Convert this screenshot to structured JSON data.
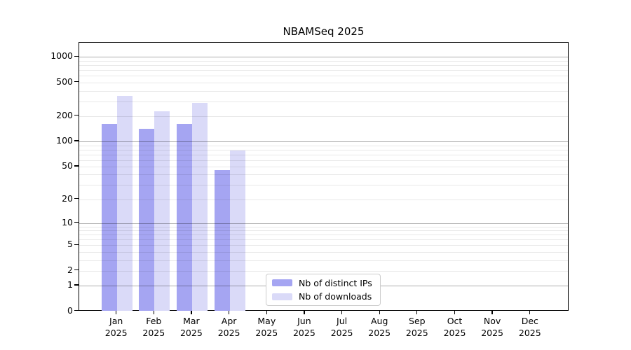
{
  "chart_data": {
    "type": "bar",
    "title": "NBAMSeq 2025",
    "scale": "log1p",
    "categories": [
      {
        "month": "Jan",
        "year": "2025"
      },
      {
        "month": "Feb",
        "year": "2025"
      },
      {
        "month": "Mar",
        "year": "2025"
      },
      {
        "month": "Apr",
        "year": "2025"
      },
      {
        "month": "May",
        "year": "2025"
      },
      {
        "month": "Jun",
        "year": "2025"
      },
      {
        "month": "Jul",
        "year": "2025"
      },
      {
        "month": "Aug",
        "year": "2025"
      },
      {
        "month": "Sep",
        "year": "2025"
      },
      {
        "month": "Oct",
        "year": "2025"
      },
      {
        "month": "Nov",
        "year": "2025"
      },
      {
        "month": "Dec",
        "year": "2025"
      }
    ],
    "series": [
      {
        "name": "Nb of distinct IPs",
        "color": "#a5a5f2",
        "values": [
          162,
          140,
          162,
          45,
          0,
          0,
          0,
          0,
          0,
          0,
          0,
          0
        ]
      },
      {
        "name": "Nb of downloads",
        "color": "#dadaf8",
        "values": [
          345,
          226,
          285,
          78,
          0,
          0,
          0,
          0,
          0,
          0,
          0,
          0
        ]
      }
    ],
    "yticks": [
      1000,
      500,
      200,
      100,
      50,
      20,
      10,
      5,
      2,
      1,
      0
    ],
    "ylim": [
      0,
      1475
    ],
    "gridlines": {
      "major": [
        1,
        10,
        100,
        1000
      ],
      "minor": [
        2,
        3,
        4,
        5,
        6,
        7,
        8,
        9,
        20,
        30,
        40,
        50,
        60,
        70,
        80,
        90,
        200,
        300,
        400,
        500,
        600,
        700,
        800,
        900
      ]
    },
    "legend_position": "inside lower-center",
    "grid": true
  },
  "colors": {
    "axis": "#000000",
    "major_grid": "#b3b3b3",
    "minor_grid": "#e9e9e9",
    "background": "#ffffff",
    "legend_border": "#cccccc"
  }
}
